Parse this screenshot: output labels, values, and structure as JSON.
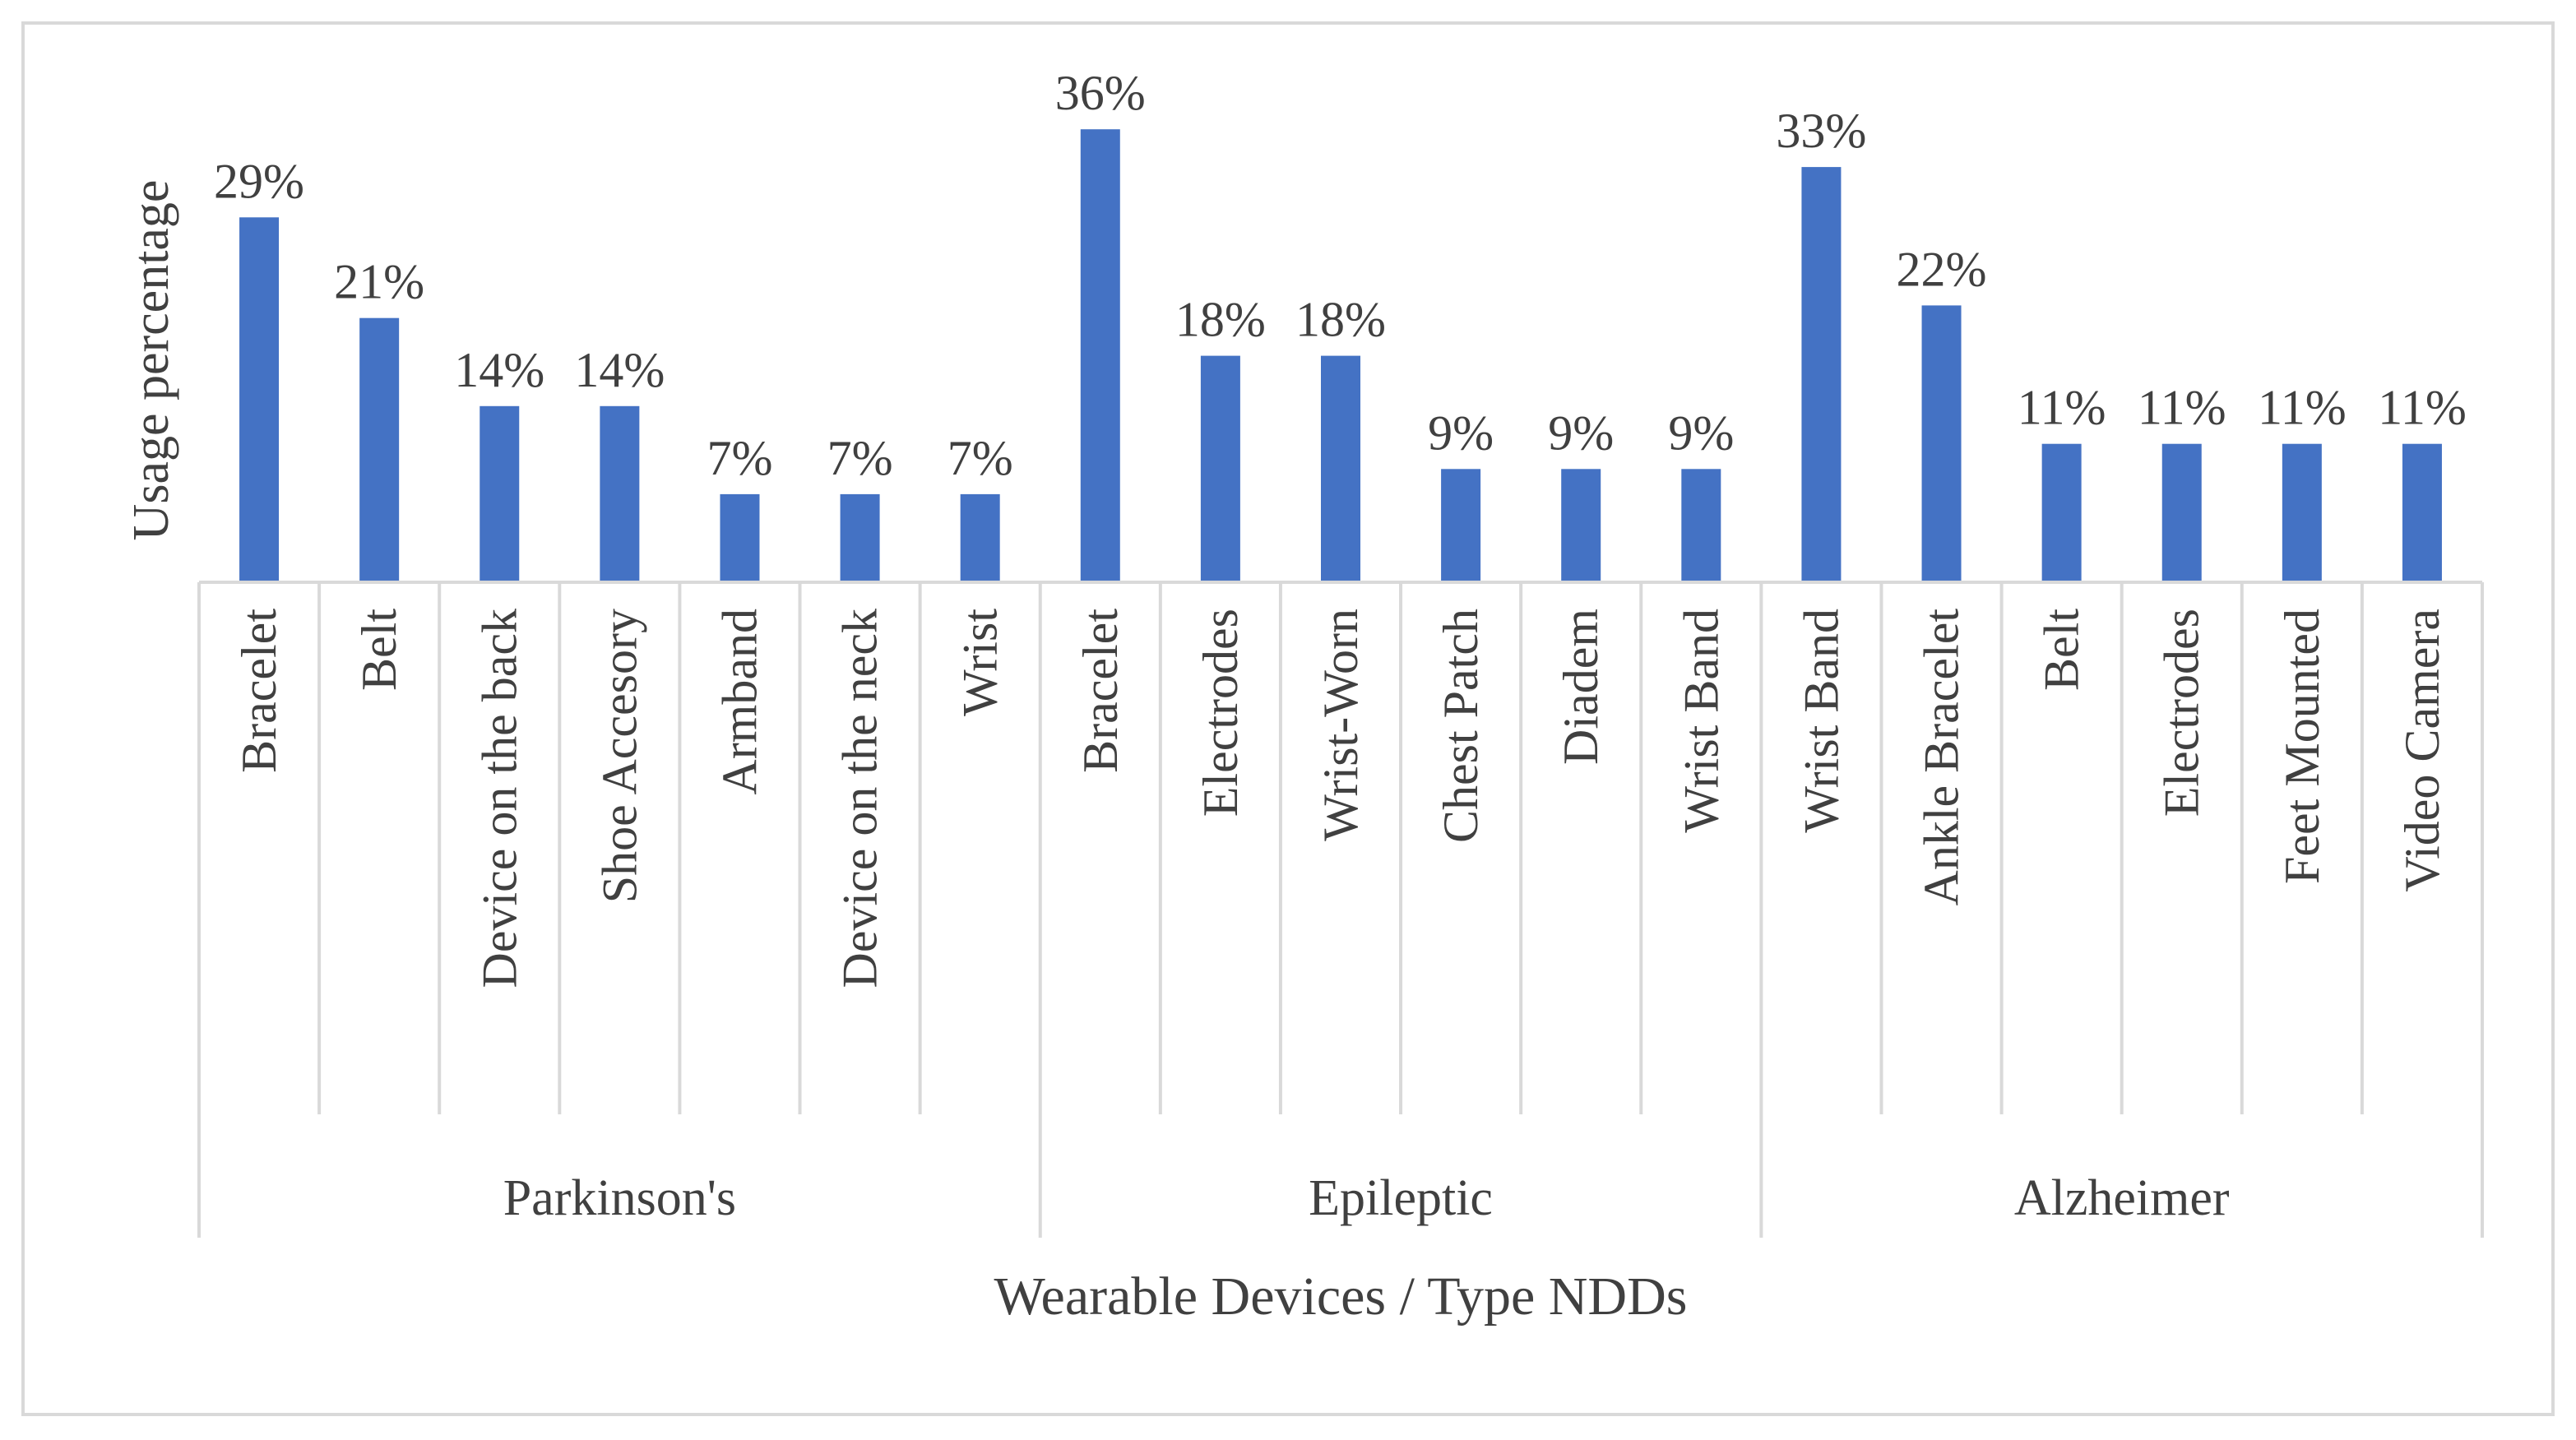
{
  "chart_data": {
    "type": "bar",
    "title": "",
    "xlabel": "Wearable Devices / Type NDDs",
    "ylabel": "Usage percentage",
    "ylim": [
      0,
      40
    ],
    "grid": false,
    "legend": "none",
    "bar_color": "#4472c4",
    "axis_color": "#d9d9d9",
    "text_color": "#404040",
    "groups": [
      {
        "name": "Parkinson's",
        "categories": [
          "Bracelet",
          "Belt",
          "Device on the back",
          "Shoe Accesory",
          "Armband",
          "Device on the neck",
          "Wrist"
        ],
        "values": [
          29,
          21,
          14,
          14,
          7,
          7,
          7
        ],
        "labels": [
          "29%",
          "21%",
          "14%",
          "14%",
          "7%",
          "7%",
          "7%"
        ]
      },
      {
        "name": "Epileptic",
        "categories": [
          "Bracelet",
          "Electrodes",
          "Wrist-Worn",
          "Chest Patch",
          "Diadem",
          "Wrist Band"
        ],
        "values": [
          36,
          18,
          18,
          9,
          9,
          9
        ],
        "labels": [
          "36%",
          "18%",
          "18%",
          "9%",
          "9%",
          "9%"
        ]
      },
      {
        "name": "Alzheimer",
        "categories": [
          "Wrist Band",
          "Ankle Bracelet",
          "Belt",
          "Electrodes",
          "Feet Mounted",
          "Video Camera"
        ],
        "values": [
          33,
          22,
          11,
          11,
          11,
          11
        ],
        "labels": [
          "33%",
          "22%",
          "11%",
          "11%",
          "11%",
          "11%"
        ]
      }
    ]
  }
}
